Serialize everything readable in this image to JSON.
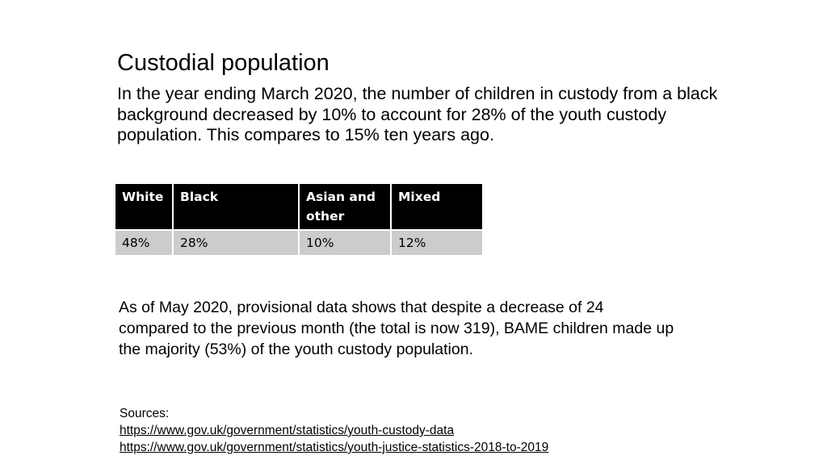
{
  "slide": {
    "title": "Custodial population",
    "intro": "In the year ending March 2020, the number of children in custody from a black background decreased by 10% to account for 28% of the youth custody population. This compares to 15% ten years ago.",
    "table": {
      "headers": [
        "White",
        "Black",
        "Asian and other",
        "Mixed"
      ],
      "values": [
        "48%",
        "28%",
        "10%",
        "12%"
      ]
    },
    "secondary": "As of May 2020, provisional data shows that despite a decrease of 24 compared to the previous month (the total is now 319), BAME children made up the majority (53%) of the youth custody population.",
    "sources": {
      "label": "Sources:",
      "links": [
        "https://www.gov.uk/government/statistics/youth-custody-data",
        "https://www.gov.uk/government/statistics/youth-justice-statistics-2018-to-2019"
      ]
    }
  },
  "colors": {
    "header_bg": "#000000",
    "header_text": "#ffffff",
    "cell_bg": "#cccccc"
  }
}
